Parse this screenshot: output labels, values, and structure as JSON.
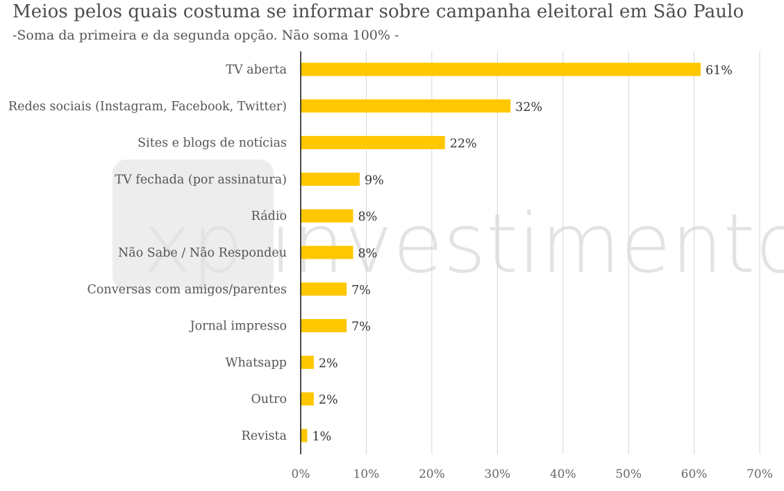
{
  "chart_data": {
    "type": "bar",
    "orientation": "horizontal",
    "title": "Meios pelos quais costuma se informar sobre campanha eleitoral em São Paulo",
    "subtitle": "-Soma da primeira e da segunda opção. Não soma 100% -",
    "categories": [
      "TV aberta",
      "Redes sociais (Instagram, Facebook, Twitter)",
      "Sites e blogs de notícias",
      "TV fechada (por assinatura)",
      "Rádio",
      "Não Sabe / Não Respondeu",
      "Conversas com amigos/parentes",
      "Jornal impresso",
      "Whatsapp",
      "Outro",
      "Revista"
    ],
    "values": [
      61,
      32,
      22,
      9,
      8,
      8,
      7,
      7,
      2,
      2,
      1
    ],
    "value_labels": [
      "61%",
      "32%",
      "22%",
      "9%",
      "8%",
      "8%",
      "7%",
      "7%",
      "2%",
      "2%",
      "1%"
    ],
    "xlim": [
      0,
      70
    ],
    "xticks": [
      0,
      10,
      20,
      30,
      40,
      50,
      60,
      70
    ],
    "xtick_labels": [
      "0%",
      "10%",
      "20%",
      "30%",
      "40%",
      "50%",
      "60%",
      "70%"
    ],
    "grid": "vertical",
    "bar_color": "#FFC700",
    "watermark": "xp investimentos"
  }
}
